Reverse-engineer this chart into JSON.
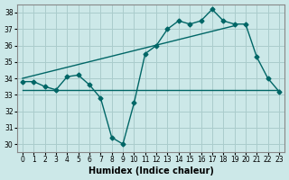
{
  "xlabel": "Humidex (Indice chaleur)",
  "bg_color": "#cce8e8",
  "line_color": "#006666",
  "grid_color": "#aacccc",
  "xlim": [
    -0.5,
    23.5
  ],
  "ylim": [
    29.5,
    38.5
  ],
  "yticks": [
    30,
    31,
    32,
    33,
    34,
    35,
    36,
    37,
    38
  ],
  "xticks": [
    0,
    1,
    2,
    3,
    4,
    5,
    6,
    7,
    8,
    9,
    10,
    11,
    12,
    13,
    14,
    15,
    16,
    17,
    18,
    19,
    20,
    21,
    22,
    23
  ],
  "curve_x": [
    0,
    1,
    2,
    3,
    4,
    5,
    6,
    7,
    8,
    9,
    10,
    11,
    12,
    13,
    14,
    15,
    16,
    17,
    18,
    19,
    20,
    21,
    22,
    23
  ],
  "curve_y": [
    33.8,
    33.8,
    33.5,
    33.3,
    34.1,
    34.2,
    33.6,
    32.8,
    30.4,
    30.0,
    32.5,
    35.5,
    36.0,
    37.0,
    37.5,
    37.3,
    37.5,
    38.2,
    37.5,
    37.3,
    37.3,
    35.3,
    34.0,
    33.2
  ],
  "flat_line_x": [
    0,
    23
  ],
  "flat_line_y": [
    33.3,
    33.3
  ],
  "trend_x": [
    0,
    19
  ],
  "trend_y": [
    34.0,
    37.2
  ],
  "figsize": [
    3.2,
    2.0
  ],
  "dpi": 100
}
